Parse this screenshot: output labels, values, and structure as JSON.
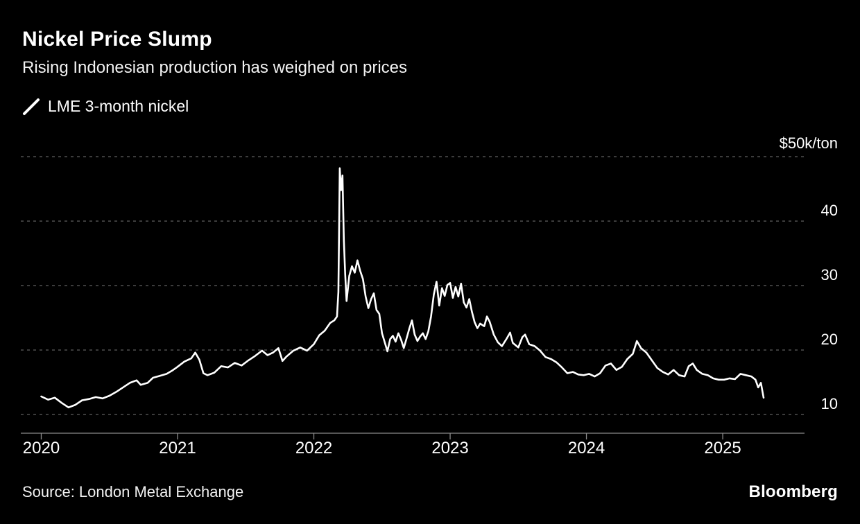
{
  "header": {
    "title": "Nickel Price Slump",
    "subtitle": "Rising Indonesian production has weighed on prices"
  },
  "legend": {
    "series_label": "LME 3-month nickel"
  },
  "footer": {
    "source": "Source: London Metal Exchange",
    "brand": "Bloomberg"
  },
  "chart_data": {
    "type": "line",
    "title": "Nickel Price Slump",
    "subtitle": "Rising Indonesian production has weighed on prices",
    "unit": "$k/ton",
    "source": "London Metal Exchange",
    "legend_position": "top-left",
    "grid": "horizontal-dashed",
    "colors": {
      "background": "#000000",
      "text": "#ffffff",
      "grid": "#5f5f5f",
      "axis": "#8a8a8a",
      "line": "#ffffff"
    },
    "x_axis": {
      "ticks": [
        2020,
        2021,
        2022,
        2023,
        2024,
        2025
      ],
      "range": [
        2019.85,
        2025.6
      ]
    },
    "y_axis": {
      "range": [
        7,
        52
      ],
      "ticks": [
        {
          "value": 10,
          "label": "10"
        },
        {
          "value": 20,
          "label": "20"
        },
        {
          "value": 30,
          "label": "30"
        },
        {
          "value": 40,
          "label": "40"
        },
        {
          "value": 50,
          "label": "$50k/ton"
        }
      ]
    },
    "series": [
      {
        "name": "LME 3-month nickel",
        "color": "#ffffff",
        "points": [
          [
            2020.0,
            12.8
          ],
          [
            2020.05,
            12.3
          ],
          [
            2020.1,
            12.6
          ],
          [
            2020.15,
            11.8
          ],
          [
            2020.2,
            11.1
          ],
          [
            2020.25,
            11.5
          ],
          [
            2020.3,
            12.2
          ],
          [
            2020.35,
            12.4
          ],
          [
            2020.4,
            12.7
          ],
          [
            2020.45,
            12.5
          ],
          [
            2020.5,
            12.9
          ],
          [
            2020.55,
            13.5
          ],
          [
            2020.6,
            14.2
          ],
          [
            2020.65,
            14.9
          ],
          [
            2020.7,
            15.3
          ],
          [
            2020.73,
            14.6
          ],
          [
            2020.78,
            14.9
          ],
          [
            2020.82,
            15.7
          ],
          [
            2020.87,
            16.0
          ],
          [
            2020.92,
            16.3
          ],
          [
            2020.96,
            16.8
          ],
          [
            2021.0,
            17.4
          ],
          [
            2021.05,
            18.2
          ],
          [
            2021.1,
            18.7
          ],
          [
            2021.13,
            19.6
          ],
          [
            2021.16,
            18.5
          ],
          [
            2021.19,
            16.4
          ],
          [
            2021.22,
            16.1
          ],
          [
            2021.27,
            16.5
          ],
          [
            2021.32,
            17.5
          ],
          [
            2021.37,
            17.3
          ],
          [
            2021.42,
            18.0
          ],
          [
            2021.47,
            17.6
          ],
          [
            2021.52,
            18.4
          ],
          [
            2021.57,
            19.1
          ],
          [
            2021.62,
            19.9
          ],
          [
            2021.66,
            19.2
          ],
          [
            2021.7,
            19.6
          ],
          [
            2021.74,
            20.3
          ],
          [
            2021.77,
            18.3
          ],
          [
            2021.8,
            19.0
          ],
          [
            2021.85,
            19.9
          ],
          [
            2021.9,
            20.4
          ],
          [
            2021.95,
            19.9
          ],
          [
            2022.0,
            20.9
          ],
          [
            2022.04,
            22.3
          ],
          [
            2022.08,
            23.0
          ],
          [
            2022.12,
            24.2
          ],
          [
            2022.15,
            24.6
          ],
          [
            2022.17,
            25.2
          ],
          [
            2022.18,
            29.0
          ],
          [
            2022.19,
            48.2
          ],
          [
            2022.2,
            44.8
          ],
          [
            2022.21,
            47.1
          ],
          [
            2022.22,
            37.0
          ],
          [
            2022.23,
            31.8
          ],
          [
            2022.24,
            27.6
          ],
          [
            2022.26,
            31.5
          ],
          [
            2022.28,
            33.0
          ],
          [
            2022.3,
            32.0
          ],
          [
            2022.32,
            33.9
          ],
          [
            2022.34,
            32.3
          ],
          [
            2022.36,
            31.0
          ],
          [
            2022.38,
            28.3
          ],
          [
            2022.4,
            26.5
          ],
          [
            2022.42,
            27.9
          ],
          [
            2022.44,
            28.8
          ],
          [
            2022.46,
            26.2
          ],
          [
            2022.48,
            25.6
          ],
          [
            2022.5,
            22.6
          ],
          [
            2022.52,
            21.2
          ],
          [
            2022.54,
            19.8
          ],
          [
            2022.56,
            21.7
          ],
          [
            2022.58,
            22.2
          ],
          [
            2022.6,
            21.3
          ],
          [
            2022.62,
            22.6
          ],
          [
            2022.64,
            21.6
          ],
          [
            2022.66,
            20.3
          ],
          [
            2022.68,
            21.8
          ],
          [
            2022.7,
            23.3
          ],
          [
            2022.72,
            24.6
          ],
          [
            2022.74,
            22.4
          ],
          [
            2022.76,
            21.4
          ],
          [
            2022.78,
            22.1
          ],
          [
            2022.8,
            22.6
          ],
          [
            2022.82,
            21.7
          ],
          [
            2022.84,
            22.9
          ],
          [
            2022.86,
            25.2
          ],
          [
            2022.88,
            28.6
          ],
          [
            2022.9,
            30.6
          ],
          [
            2022.92,
            26.9
          ],
          [
            2022.94,
            29.6
          ],
          [
            2022.96,
            28.4
          ],
          [
            2022.98,
            30.1
          ],
          [
            2023.0,
            30.4
          ],
          [
            2023.02,
            28.1
          ],
          [
            2023.04,
            29.8
          ],
          [
            2023.06,
            28.3
          ],
          [
            2023.08,
            30.3
          ],
          [
            2023.1,
            27.4
          ],
          [
            2023.12,
            26.6
          ],
          [
            2023.14,
            27.9
          ],
          [
            2023.16,
            25.9
          ],
          [
            2023.18,
            24.3
          ],
          [
            2023.2,
            23.4
          ],
          [
            2023.22,
            24.1
          ],
          [
            2023.25,
            23.7
          ],
          [
            2023.27,
            25.2
          ],
          [
            2023.29,
            24.4
          ],
          [
            2023.32,
            22.4
          ],
          [
            2023.35,
            21.2
          ],
          [
            2023.38,
            20.6
          ],
          [
            2023.41,
            21.6
          ],
          [
            2023.44,
            22.7
          ],
          [
            2023.46,
            21.1
          ],
          [
            2023.5,
            20.4
          ],
          [
            2023.53,
            22.0
          ],
          [
            2023.55,
            22.4
          ],
          [
            2023.58,
            20.9
          ],
          [
            2023.62,
            20.6
          ],
          [
            2023.66,
            19.9
          ],
          [
            2023.7,
            18.9
          ],
          [
            2023.74,
            18.6
          ],
          [
            2023.78,
            18.1
          ],
          [
            2023.82,
            17.3
          ],
          [
            2023.86,
            16.4
          ],
          [
            2023.9,
            16.6
          ],
          [
            2023.94,
            16.2
          ],
          [
            2023.98,
            16.1
          ],
          [
            2024.02,
            16.3
          ],
          [
            2024.06,
            15.9
          ],
          [
            2024.1,
            16.4
          ],
          [
            2024.14,
            17.6
          ],
          [
            2024.18,
            17.9
          ],
          [
            2024.22,
            16.9
          ],
          [
            2024.26,
            17.4
          ],
          [
            2024.3,
            18.6
          ],
          [
            2024.34,
            19.4
          ],
          [
            2024.37,
            21.4
          ],
          [
            2024.4,
            20.3
          ],
          [
            2024.44,
            19.6
          ],
          [
            2024.48,
            18.4
          ],
          [
            2024.52,
            17.2
          ],
          [
            2024.56,
            16.6
          ],
          [
            2024.6,
            16.2
          ],
          [
            2024.64,
            16.9
          ],
          [
            2024.68,
            16.1
          ],
          [
            2024.72,
            15.9
          ],
          [
            2024.75,
            17.5
          ],
          [
            2024.78,
            17.9
          ],
          [
            2024.81,
            16.9
          ],
          [
            2024.85,
            16.3
          ],
          [
            2024.89,
            16.1
          ],
          [
            2024.93,
            15.6
          ],
          [
            2024.97,
            15.4
          ],
          [
            2025.01,
            15.4
          ],
          [
            2025.05,
            15.6
          ],
          [
            2025.09,
            15.5
          ],
          [
            2025.13,
            16.3
          ],
          [
            2025.17,
            16.1
          ],
          [
            2025.21,
            15.9
          ],
          [
            2025.24,
            15.4
          ],
          [
            2025.26,
            14.2
          ],
          [
            2025.28,
            14.9
          ],
          [
            2025.3,
            12.6
          ]
        ]
      }
    ]
  }
}
